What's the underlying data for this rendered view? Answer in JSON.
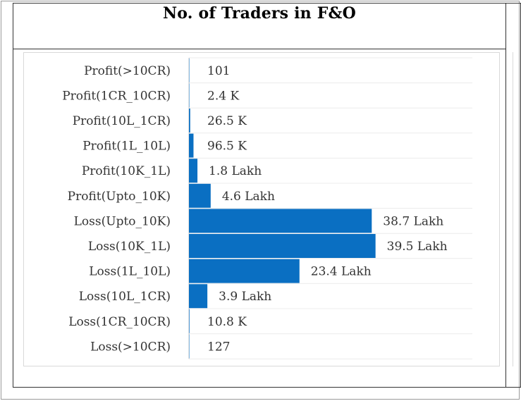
{
  "chart_data": {
    "type": "bar",
    "orientation": "horizontal",
    "title": "No. of Traders in F&O",
    "categories": [
      "Profit(>10CR)",
      "Profit(1CR_10CR)",
      "Profit(10L_1CR)",
      "Profit(1L_10L)",
      "Profit(10K_1L)",
      "Profit(Upto_10K)",
      "Loss(Upto_10K)",
      "Loss(10K_1L)",
      "Loss(1L_10L)",
      "Loss(10L_1CR)",
      "Loss(1CR_10CR)",
      "Loss(>10CR)"
    ],
    "values": [
      101,
      2400,
      26500,
      96500,
      180000,
      460000,
      3870000,
      3950000,
      2340000,
      390000,
      10800,
      127
    ],
    "data_labels": [
      "101",
      "2.4 K",
      "26.5 K",
      "96.5 K",
      "1.8 Lakh",
      "4.6 Lakh",
      "38.7 Lakh",
      "39.5 Lakh",
      "23.4 Lakh",
      "3.9 Lakh",
      "10.8 K",
      "127"
    ],
    "xlim": [
      0,
      6000000
    ],
    "grid": true,
    "bar_color": "#0a6fc2"
  }
}
